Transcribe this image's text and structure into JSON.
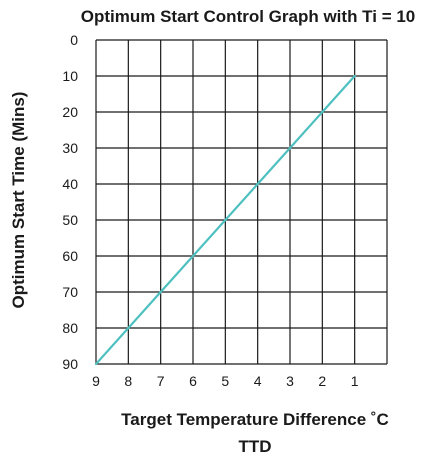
{
  "chart_data": {
    "type": "line",
    "title": "Optimum Start Control Graph with Ti = 10",
    "xlabel": "Target Temperature Difference ˚C",
    "xlabel2": "TTD",
    "ylabel": "Optimum Start Time (Mins)",
    "x_ticks": [
      "9",
      "8",
      "7",
      "6",
      "5",
      "4",
      "3",
      "2",
      "1"
    ],
    "y_ticks": [
      "0",
      "10",
      "20",
      "30",
      "40",
      "50",
      "60",
      "70",
      "80",
      "90"
    ],
    "xlim": [
      9,
      0
    ],
    "ylim": [
      0,
      90
    ],
    "x_reversed": true,
    "y_inverted": true,
    "grid": true,
    "line_color": "#4fc0c0",
    "series": [
      {
        "x": [
          9,
          8,
          7,
          6,
          5,
          4,
          3,
          2,
          1
        ],
        "y": [
          90,
          80,
          70,
          60,
          50,
          40,
          30,
          20,
          10
        ]
      }
    ]
  }
}
